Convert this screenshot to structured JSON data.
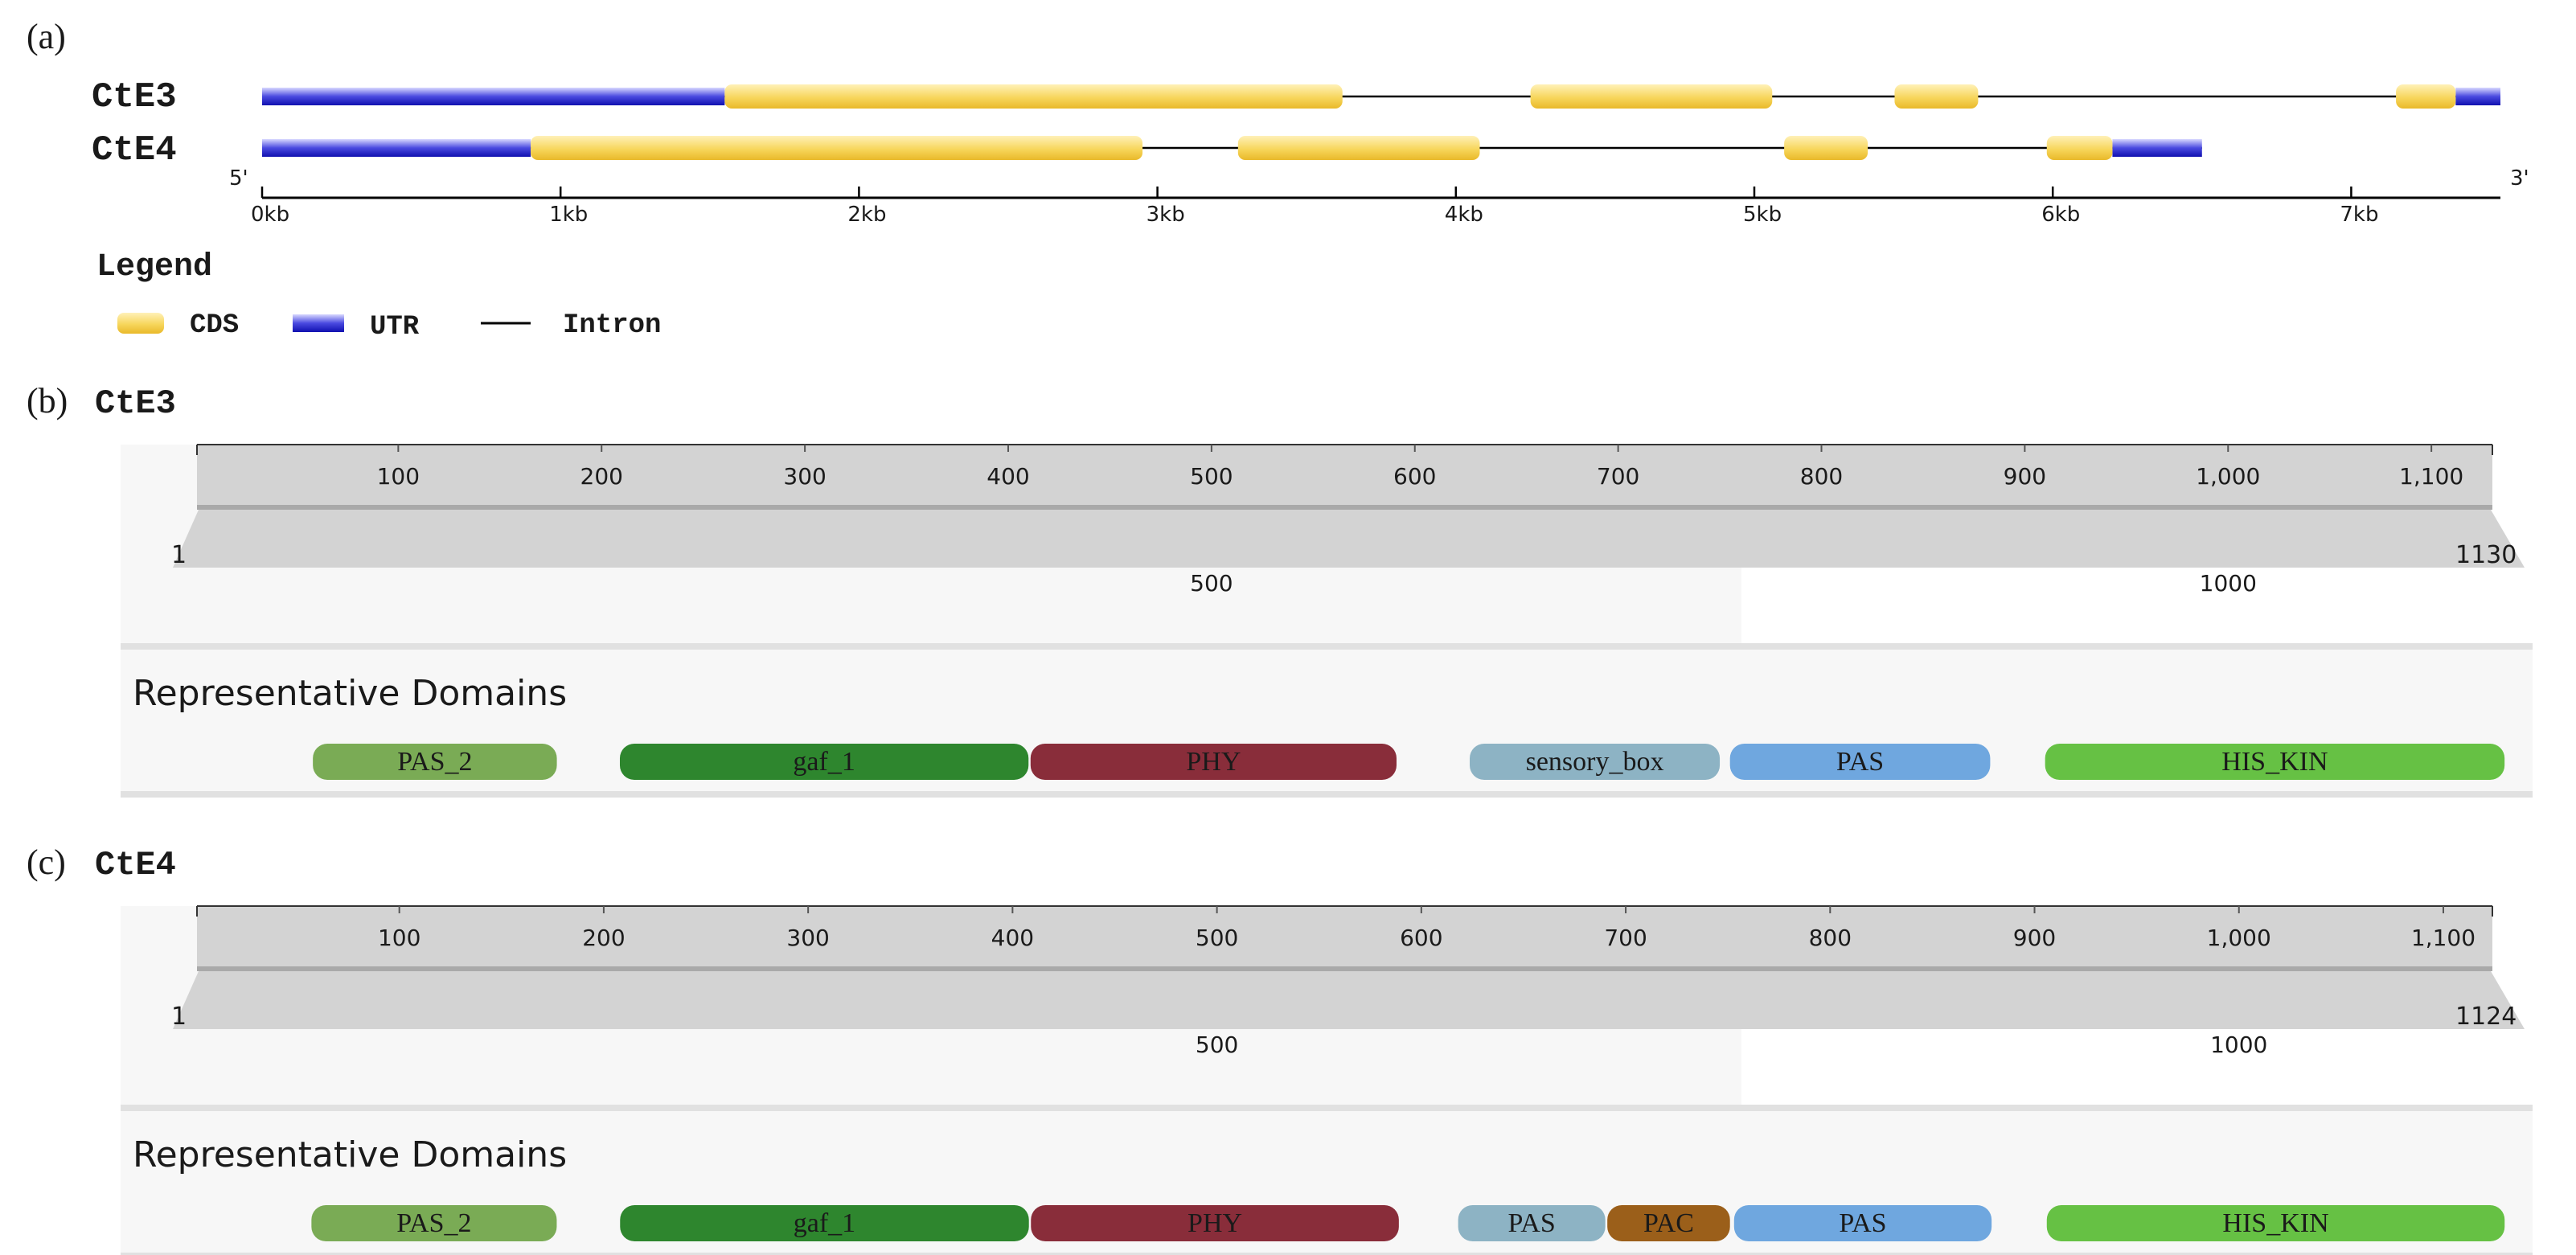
{
  "panel_a": {
    "label": "(a)",
    "prime5": "5'",
    "prime3": "3'",
    "axis_ticks": [
      {
        "kb": 0,
        "label": "0kb"
      },
      {
        "kb": 1,
        "label": "1kb"
      },
      {
        "kb": 2,
        "label": "2kb"
      },
      {
        "kb": 3,
        "label": "3kb"
      },
      {
        "kb": 4,
        "label": "4kb"
      },
      {
        "kb": 5,
        "label": "5kb"
      },
      {
        "kb": 6,
        "label": "6kb"
      },
      {
        "kb": 7,
        "label": "7kb"
      }
    ],
    "axis_max_kb": 7.5,
    "genes": [
      {
        "name": "CtE3",
        "span_kb": [
          0,
          7.5
        ],
        "utr": [
          [
            0,
            1.55
          ],
          [
            7.35,
            7.5
          ]
        ],
        "cds": [
          [
            1.55,
            3.62
          ],
          [
            4.25,
            5.06
          ],
          [
            5.47,
            5.75
          ],
          [
            7.15,
            7.35
          ]
        ]
      },
      {
        "name": "CtE4",
        "span_kb": [
          0,
          6.5
        ],
        "utr": [
          [
            0,
            0.9
          ],
          [
            6.2,
            6.5
          ]
        ],
        "cds": [
          [
            0.9,
            2.95
          ],
          [
            3.27,
            4.08
          ],
          [
            5.1,
            5.38
          ],
          [
            5.98,
            6.2
          ]
        ]
      }
    ],
    "legend": {
      "title": "Legend",
      "items": [
        {
          "kind": "cds",
          "label": "CDS"
        },
        {
          "kind": "utr",
          "label": "UTR"
        },
        {
          "kind": "intron",
          "label": "Intron"
        }
      ]
    }
  },
  "proteins": [
    {
      "label": "(b)",
      "name": "CtE3",
      "length": 1130,
      "length_label": "1130",
      "start_label": "1",
      "ticks": [
        {
          "v": 100,
          "label": "100"
        },
        {
          "v": 200,
          "label": "200"
        },
        {
          "v": 300,
          "label": "300"
        },
        {
          "v": 400,
          "label": "400"
        },
        {
          "v": 500,
          "label": "500"
        },
        {
          "v": 600,
          "label": "600"
        },
        {
          "v": 700,
          "label": "700"
        },
        {
          "v": 800,
          "label": "800"
        },
        {
          "v": 900,
          "label": "900"
        },
        {
          "v": 1000,
          "label": "1,000"
        },
        {
          "v": 1100,
          "label": "1,100"
        }
      ],
      "sub_ticks": [
        {
          "v": 500,
          "label": "500"
        },
        {
          "v": 1000,
          "label": "1000"
        }
      ],
      "domains_title": "Representative Domains",
      "domains": [
        {
          "name": "PAS_2",
          "start": 58,
          "end": 178,
          "color": "#7aab55",
          "text_color": "#ffffff"
        },
        {
          "name": "gaf_1",
          "start": 209,
          "end": 410,
          "color": "#2e862e",
          "text_color": "#ffffff"
        },
        {
          "name": "PHY",
          "start": 411,
          "end": 591,
          "color": "#892d3a",
          "text_color": "#ffffff"
        },
        {
          "name": "sensory_box",
          "start": 627,
          "end": 750,
          "color": "#8db3c4",
          "text_color": "#1a1a1a"
        },
        {
          "name": "PAS",
          "start": 755,
          "end": 883,
          "color": "#6fa7df",
          "text_color": "#ffffff"
        },
        {
          "name": "HIS_KIN",
          "start": 910,
          "end": 1136,
          "color": "#66c144",
          "text_color": "#ffffff"
        }
      ]
    },
    {
      "label": "(c)",
      "name": "CtE4",
      "length": 1124,
      "length_label": "1124",
      "start_label": "1",
      "ticks": [
        {
          "v": 100,
          "label": "100"
        },
        {
          "v": 200,
          "label": "200"
        },
        {
          "v": 300,
          "label": "300"
        },
        {
          "v": 400,
          "label": "400"
        },
        {
          "v": 500,
          "label": "500"
        },
        {
          "v": 600,
          "label": "600"
        },
        {
          "v": 700,
          "label": "700"
        },
        {
          "v": 800,
          "label": "800"
        },
        {
          "v": 900,
          "label": "900"
        },
        {
          "v": 1000,
          "label": "1,000"
        },
        {
          "v": 1100,
          "label": "1,100"
        }
      ],
      "sub_ticks": [
        {
          "v": 500,
          "label": "500"
        },
        {
          "v": 1000,
          "label": "1000"
        }
      ],
      "domains_title": "Representative Domains",
      "domains": [
        {
          "name": "PAS_2",
          "start": 57,
          "end": 177,
          "color": "#7aab55",
          "text_color": "#ffffff"
        },
        {
          "name": "gaf_1",
          "start": 208,
          "end": 408,
          "color": "#2e862e",
          "text_color": "#ffffff"
        },
        {
          "name": "PHY",
          "start": 409,
          "end": 589,
          "color": "#892d3a",
          "text_color": "#ffffff"
        },
        {
          "name": "PAS",
          "start": 618,
          "end": 690,
          "color": "#8db3c4",
          "text_color": "#1a1a1a"
        },
        {
          "name": "PAC",
          "start": 691,
          "end": 751,
          "color": "#9b5f1a",
          "text_color": "#ffffff"
        },
        {
          "name": "PAS",
          "start": 753,
          "end": 879,
          "color": "#6fa7df",
          "text_color": "#ffffff"
        },
        {
          "name": "HIS_KIN",
          "start": 906,
          "end": 1130,
          "color": "#66c144",
          "text_color": "#ffffff"
        }
      ]
    }
  ]
}
